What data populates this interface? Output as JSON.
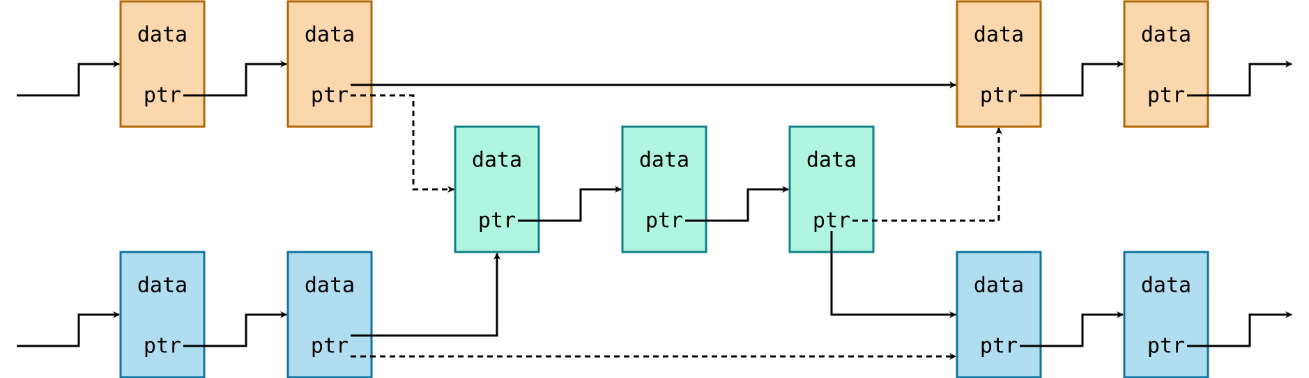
{
  "colors": {
    "orange_fill": "#fad7ac",
    "orange_stroke": "#b46504",
    "green_fill": "#b0f5e0",
    "green_stroke": "#0e8088",
    "blue_fill": "#b1ddf0",
    "blue_stroke": "#10739e",
    "line": "#000000",
    "background": "#ffffff"
  },
  "nodes": [
    {
      "id": "o1",
      "group": "orange",
      "data_label": "data",
      "ptr_label": "ptr"
    },
    {
      "id": "o2",
      "group": "orange",
      "data_label": "data",
      "ptr_label": "ptr"
    },
    {
      "id": "o3",
      "group": "orange",
      "data_label": "data",
      "ptr_label": "ptr"
    },
    {
      "id": "o4",
      "group": "orange",
      "data_label": "data",
      "ptr_label": "ptr"
    },
    {
      "id": "g1",
      "group": "green",
      "data_label": "data",
      "ptr_label": "ptr"
    },
    {
      "id": "g2",
      "group": "green",
      "data_label": "data",
      "ptr_label": "ptr"
    },
    {
      "id": "g3",
      "group": "green",
      "data_label": "data",
      "ptr_label": "ptr"
    },
    {
      "id": "b1",
      "group": "blue",
      "data_label": "data",
      "ptr_label": "ptr"
    },
    {
      "id": "b2",
      "group": "blue",
      "data_label": "data",
      "ptr_label": "ptr"
    },
    {
      "id": "b3",
      "group": "blue",
      "data_label": "data",
      "ptr_label": "ptr"
    },
    {
      "id": "b4",
      "group": "blue",
      "data_label": "data",
      "ptr_label": "ptr"
    }
  ],
  "edges": [
    {
      "from": "start-orange",
      "to": "o1",
      "style": "solid"
    },
    {
      "from": "o1",
      "to": "o2",
      "style": "solid"
    },
    {
      "from": "o2",
      "to": "o3",
      "style": "solid"
    },
    {
      "from": "o2",
      "to": "g1",
      "style": "dashed"
    },
    {
      "from": "o3",
      "to": "o4",
      "style": "solid"
    },
    {
      "from": "o4",
      "to": "end-orange",
      "style": "solid"
    },
    {
      "from": "g1",
      "to": "g2",
      "style": "solid"
    },
    {
      "from": "g2",
      "to": "g3",
      "style": "solid"
    },
    {
      "from": "g3",
      "to": "o3",
      "style": "dashed"
    },
    {
      "from": "g3",
      "to": "b3",
      "style": "solid"
    },
    {
      "from": "start-blue",
      "to": "b1",
      "style": "solid"
    },
    {
      "from": "b1",
      "to": "b2",
      "style": "solid"
    },
    {
      "from": "b2",
      "to": "g1",
      "style": "solid"
    },
    {
      "from": "b2",
      "to": "b3",
      "style": "dashed"
    },
    {
      "from": "b3",
      "to": "b4",
      "style": "solid"
    },
    {
      "from": "b4",
      "to": "end-blue",
      "style": "solid"
    }
  ]
}
